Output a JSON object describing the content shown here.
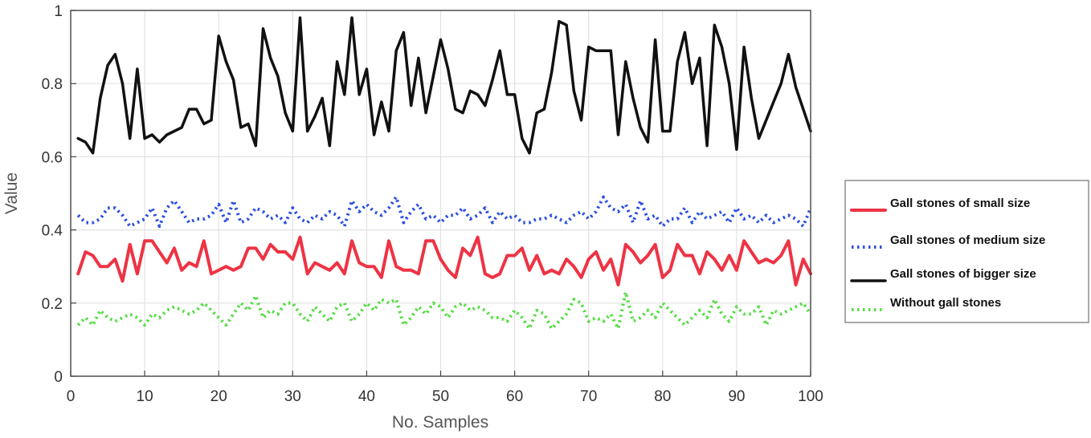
{
  "chart_data": {
    "type": "line",
    "xlabel": "No. Samples",
    "ylabel": "Value",
    "xlim": [
      0,
      100
    ],
    "ylim": [
      0,
      1
    ],
    "xticks": [
      0,
      10,
      20,
      30,
      40,
      50,
      60,
      70,
      80,
      90,
      100
    ],
    "yticks": [
      0,
      0.2,
      0.4,
      0.6,
      0.8,
      1
    ],
    "ytick_labels": [
      "0",
      "0.2",
      "0.4",
      "0.6",
      "0.8",
      "1"
    ],
    "grid": true,
    "legend_position": "right",
    "x": [
      1,
      2,
      3,
      4,
      5,
      6,
      7,
      8,
      9,
      10,
      11,
      12,
      13,
      14,
      15,
      16,
      17,
      18,
      19,
      20,
      21,
      22,
      23,
      24,
      25,
      26,
      27,
      28,
      29,
      30,
      31,
      32,
      33,
      34,
      35,
      36,
      37,
      38,
      39,
      40,
      41,
      42,
      43,
      44,
      45,
      46,
      47,
      48,
      49,
      50,
      51,
      52,
      53,
      54,
      55,
      56,
      57,
      58,
      59,
      60,
      61,
      62,
      63,
      64,
      65,
      66,
      67,
      68,
      69,
      70,
      71,
      72,
      73,
      74,
      75,
      76,
      77,
      78,
      79,
      80,
      81,
      82,
      83,
      84,
      85,
      86,
      87,
      88,
      89,
      90,
      91,
      92,
      93,
      94,
      95,
      96,
      97,
      98,
      99,
      100
    ],
    "series": [
      {
        "name": "Gall stones of small size",
        "color": "#ee3344",
        "style": "solid",
        "values": [
          0.28,
          0.34,
          0.33,
          0.3,
          0.3,
          0.32,
          0.26,
          0.36,
          0.28,
          0.37,
          0.37,
          0.34,
          0.31,
          0.35,
          0.29,
          0.31,
          0.3,
          0.37,
          0.28,
          0.29,
          0.3,
          0.29,
          0.3,
          0.35,
          0.35,
          0.32,
          0.36,
          0.34,
          0.34,
          0.32,
          0.38,
          0.28,
          0.31,
          0.3,
          0.29,
          0.31,
          0.28,
          0.37,
          0.31,
          0.3,
          0.3,
          0.27,
          0.37,
          0.3,
          0.29,
          0.29,
          0.28,
          0.37,
          0.37,
          0.32,
          0.29,
          0.27,
          0.35,
          0.33,
          0.38,
          0.28,
          0.27,
          0.28,
          0.33,
          0.33,
          0.35,
          0.29,
          0.33,
          0.28,
          0.29,
          0.28,
          0.32,
          0.3,
          0.27,
          0.32,
          0.34,
          0.29,
          0.32,
          0.25,
          0.36,
          0.34,
          0.31,
          0.33,
          0.36,
          0.27,
          0.29,
          0.36,
          0.33,
          0.33,
          0.28,
          0.34,
          0.32,
          0.29,
          0.33,
          0.29,
          0.37,
          0.34,
          0.31,
          0.32,
          0.31,
          0.33,
          0.37,
          0.25,
          0.32,
          0.28
        ]
      },
      {
        "name": "Gall stones of medium size",
        "color": "#2b4fe0",
        "style": "dotted",
        "values": [
          0.44,
          0.42,
          0.42,
          0.43,
          0.46,
          0.46,
          0.44,
          0.41,
          0.42,
          0.43,
          0.46,
          0.41,
          0.46,
          0.48,
          0.45,
          0.42,
          0.43,
          0.43,
          0.44,
          0.47,
          0.42,
          0.48,
          0.42,
          0.43,
          0.46,
          0.45,
          0.43,
          0.44,
          0.42,
          0.46,
          0.43,
          0.42,
          0.44,
          0.43,
          0.45,
          0.44,
          0.41,
          0.48,
          0.45,
          0.47,
          0.45,
          0.44,
          0.46,
          0.49,
          0.42,
          0.45,
          0.47,
          0.43,
          0.44,
          0.42,
          0.44,
          0.44,
          0.46,
          0.43,
          0.44,
          0.46,
          0.42,
          0.45,
          0.43,
          0.44,
          0.42,
          0.42,
          0.43,
          0.43,
          0.44,
          0.43,
          0.42,
          0.44,
          0.45,
          0.43,
          0.45,
          0.49,
          0.46,
          0.45,
          0.47,
          0.42,
          0.48,
          0.43,
          0.44,
          0.41,
          0.43,
          0.43,
          0.46,
          0.42,
          0.45,
          0.43,
          0.44,
          0.45,
          0.42,
          0.46,
          0.43,
          0.44,
          0.42,
          0.44,
          0.42,
          0.43,
          0.44,
          0.43,
          0.41,
          0.46
        ]
      },
      {
        "name": "Gall stones of bigger size",
        "color": "#111111",
        "style": "solid",
        "values": [
          0.65,
          0.64,
          0.61,
          0.76,
          0.85,
          0.88,
          0.8,
          0.65,
          0.84,
          0.65,
          0.66,
          0.64,
          0.66,
          0.67,
          0.68,
          0.73,
          0.73,
          0.69,
          0.7,
          0.93,
          0.86,
          0.81,
          0.68,
          0.69,
          0.63,
          0.95,
          0.87,
          0.82,
          0.72,
          0.67,
          0.98,
          0.67,
          0.71,
          0.76,
          0.63,
          0.86,
          0.77,
          0.98,
          0.77,
          0.84,
          0.66,
          0.75,
          0.67,
          0.89,
          0.94,
          0.74,
          0.87,
          0.72,
          0.82,
          0.92,
          0.84,
          0.73,
          0.72,
          0.78,
          0.77,
          0.74,
          0.81,
          0.89,
          0.77,
          0.77,
          0.65,
          0.61,
          0.72,
          0.73,
          0.83,
          0.97,
          0.96,
          0.78,
          0.7,
          0.9,
          0.89,
          0.89,
          0.89,
          0.66,
          0.86,
          0.76,
          0.68,
          0.64,
          0.92,
          0.67,
          0.67,
          0.86,
          0.94,
          0.8,
          0.87,
          0.63,
          0.96,
          0.9,
          0.8,
          0.62,
          0.9,
          0.76,
          0.65,
          0.7,
          0.75,
          0.8,
          0.88,
          0.79,
          0.73,
          0.67
        ]
      },
      {
        "name": "Without gall stones",
        "color": "#55dd44",
        "style": "dotted",
        "values": [
          0.14,
          0.16,
          0.14,
          0.18,
          0.16,
          0.15,
          0.16,
          0.17,
          0.16,
          0.14,
          0.17,
          0.16,
          0.18,
          0.19,
          0.18,
          0.17,
          0.18,
          0.2,
          0.18,
          0.16,
          0.14,
          0.17,
          0.2,
          0.18,
          0.22,
          0.16,
          0.18,
          0.17,
          0.2,
          0.2,
          0.17,
          0.15,
          0.19,
          0.17,
          0.15,
          0.19,
          0.2,
          0.15,
          0.17,
          0.2,
          0.18,
          0.21,
          0.2,
          0.21,
          0.14,
          0.16,
          0.19,
          0.17,
          0.2,
          0.19,
          0.16,
          0.19,
          0.2,
          0.18,
          0.19,
          0.18,
          0.16,
          0.16,
          0.15,
          0.18,
          0.16,
          0.13,
          0.18,
          0.17,
          0.13,
          0.15,
          0.17,
          0.21,
          0.2,
          0.15,
          0.16,
          0.15,
          0.17,
          0.13,
          0.23,
          0.15,
          0.16,
          0.18,
          0.16,
          0.2,
          0.18,
          0.16,
          0.14,
          0.16,
          0.18,
          0.16,
          0.21,
          0.17,
          0.15,
          0.19,
          0.17,
          0.17,
          0.19,
          0.14,
          0.18,
          0.17,
          0.18,
          0.19,
          0.2,
          0.17
        ]
      }
    ]
  }
}
